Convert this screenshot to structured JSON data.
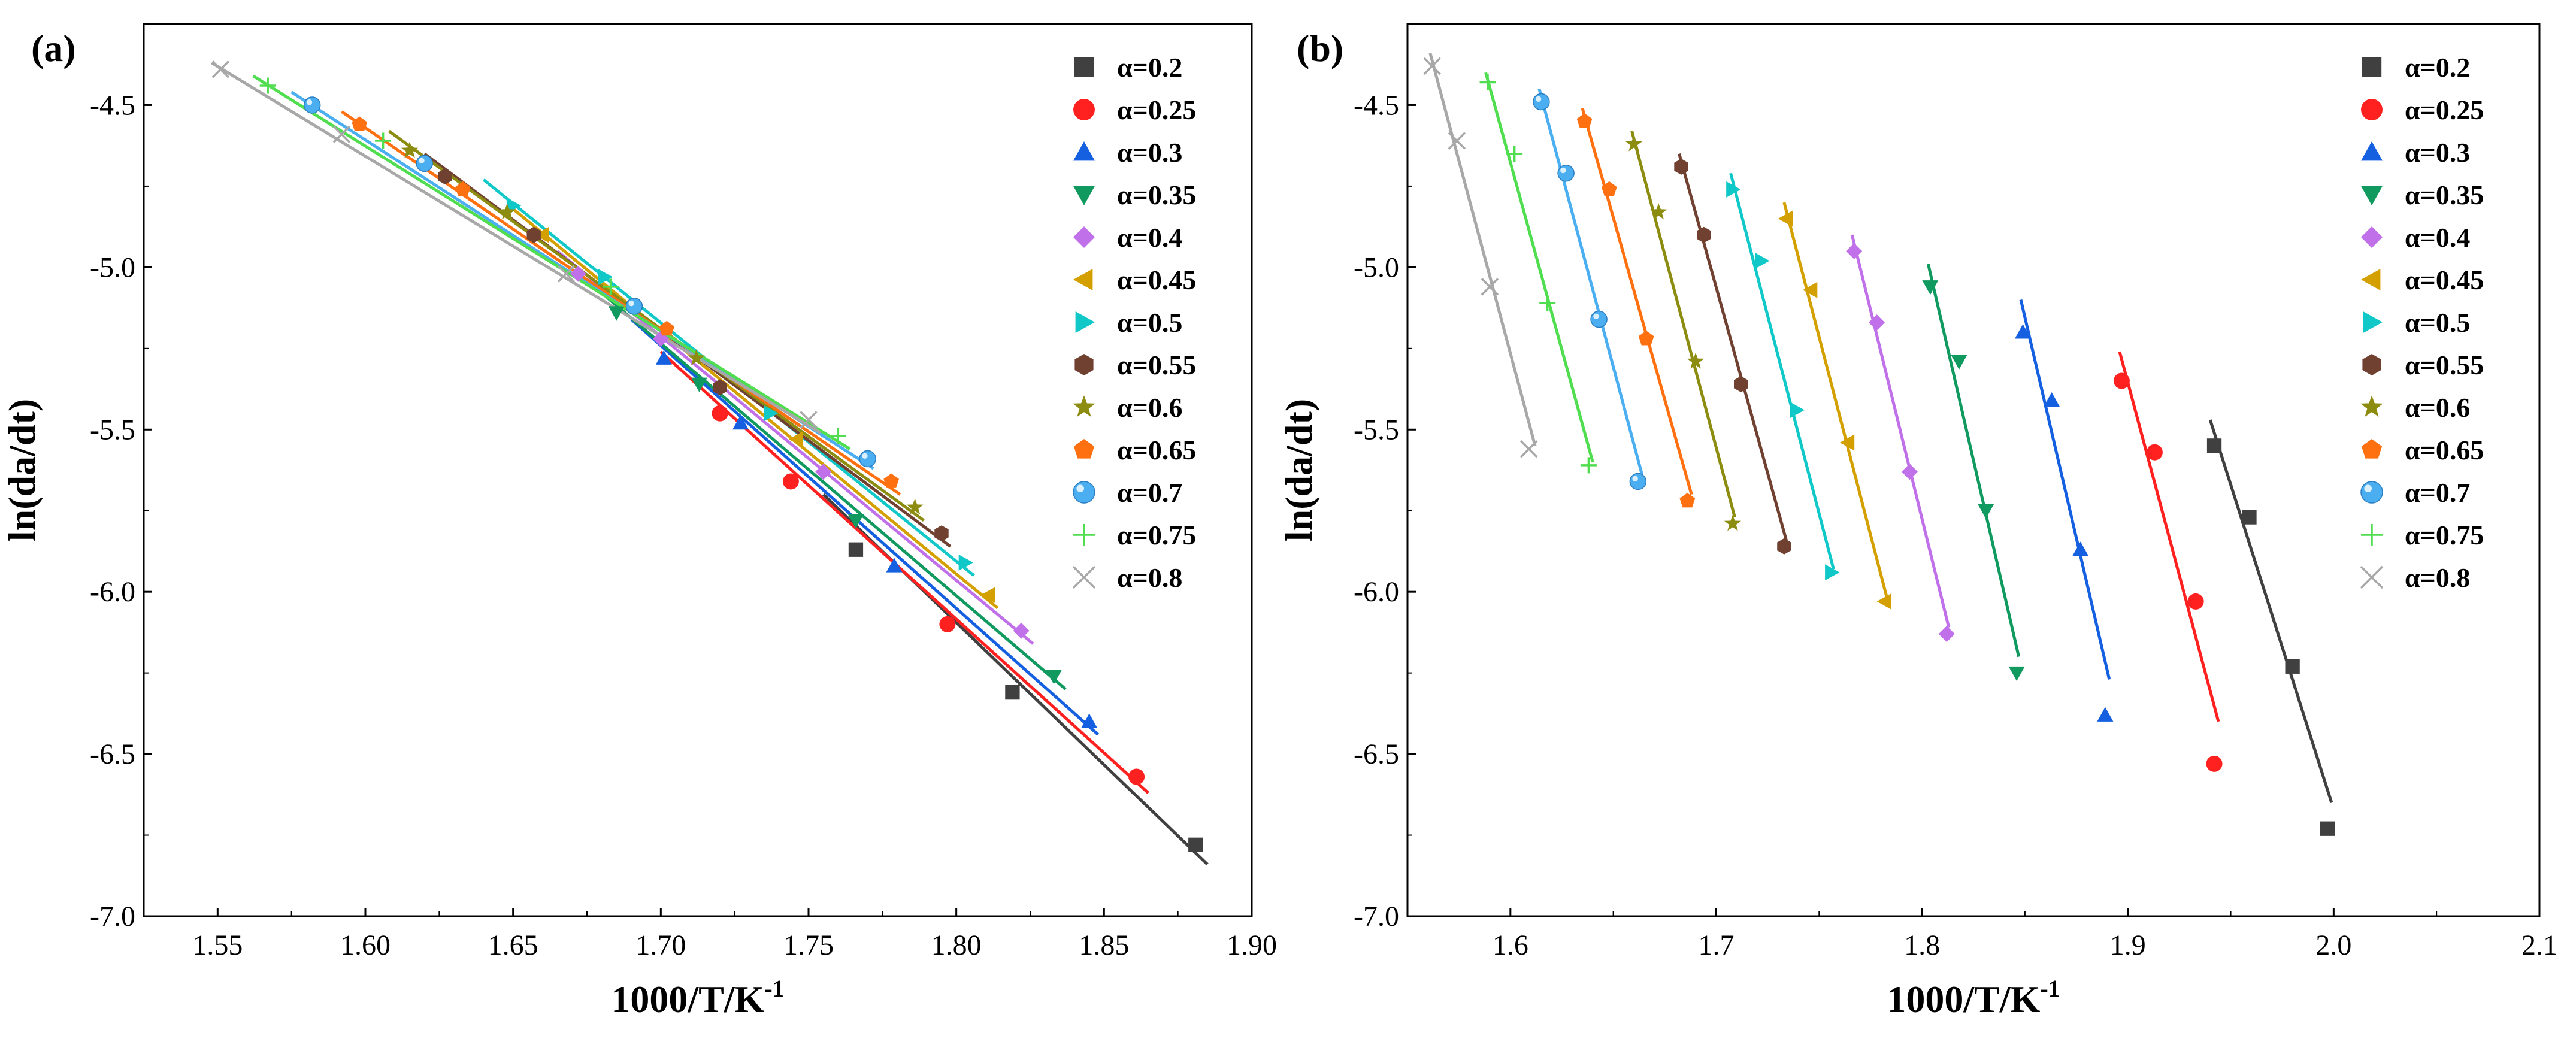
{
  "panels": [
    {
      "chart_data": {
        "type": "scatter",
        "panel_label": "(a)",
        "xlabel": "1000/T/K",
        "xlabel_sup": "-1",
        "ylabel": "ln(da/dt)",
        "xlim": [
          1.525,
          1.9
        ],
        "ylim": [
          -7.0,
          -4.25
        ],
        "xticks": [
          1.55,
          1.6,
          1.65,
          1.7,
          1.75,
          1.8,
          1.85,
          1.9
        ],
        "xtick_labels": [
          "1.55",
          "1.60",
          "1.65",
          "1.70",
          "1.75",
          "1.80",
          "1.85",
          "1.90"
        ],
        "yticks": [
          -7.0,
          -6.5,
          -6.0,
          -5.5,
          -5.0,
          -4.5
        ],
        "ytick_labels": [
          "-7.0",
          "-6.5",
          "-6.0",
          "-5.5",
          "-5.0",
          "-4.5"
        ],
        "legend_position": "top-right",
        "series": [
          {
            "name": "α=0.2",
            "color": "#404040",
            "marker": "square",
            "x": [
              1.766,
              1.819,
              1.881
            ],
            "y": [
              -5.87,
              -6.31,
              -6.78
            ],
            "fit": [
              [
                1.755,
                -5.7
              ],
              [
                1.885,
                -6.84
              ]
            ]
          },
          {
            "name": "α=0.25",
            "color": "#ff2020",
            "marker": "circle",
            "x": [
              1.72,
              1.744,
              1.797,
              1.861
            ],
            "y": [
              -5.45,
              -5.66,
              -6.1,
              -6.57
            ],
            "fit": [
              [
                1.7,
                -5.26
              ],
              [
                1.865,
                -6.62
              ]
            ]
          },
          {
            "name": "α=0.3",
            "color": "#1560e0",
            "marker": "triangle-up",
            "x": [
              1.701,
              1.727,
              1.779,
              1.845
            ],
            "y": [
              -5.28,
              -5.48,
              -5.92,
              -6.4
            ],
            "fit": [
              [
                1.69,
                -5.16
              ],
              [
                1.848,
                -6.44
              ]
            ]
          },
          {
            "name": "α=0.35",
            "color": "#109a60",
            "marker": "triangle-down",
            "x": [
              1.685,
              1.713,
              1.766,
              1.833
            ],
            "y": [
              -5.14,
              -5.36,
              -5.78,
              -6.26
            ],
            "fit": [
              [
                1.675,
                -5.04
              ],
              [
                1.837,
                -6.3
              ]
            ]
          },
          {
            "name": "α=0.4",
            "color": "#c070e8",
            "marker": "diamond",
            "x": [
              1.672,
              1.7,
              1.755,
              1.822
            ],
            "y": [
              -5.02,
              -5.22,
              -5.63,
              -6.12
            ],
            "fit": [
              [
                1.665,
                -4.95
              ],
              [
                1.826,
                -6.16
              ]
            ]
          },
          {
            "name": "α=0.45",
            "color": "#d4a000",
            "marker": "triangle-left",
            "x": [
              1.66,
              1.69,
              1.746,
              1.811
            ],
            "y": [
              -4.9,
              -5.12,
              -5.53,
              -6.01
            ],
            "fit": [
              [
                1.65,
                -4.82
              ],
              [
                1.814,
                -6.05
              ]
            ]
          },
          {
            "name": "α=0.5",
            "color": "#10c8c8",
            "marker": "triangle-right",
            "x": [
              1.65,
              1.681,
              1.737,
              1.803
            ],
            "y": [
              -4.81,
              -5.03,
              -5.45,
              -5.91
            ],
            "fit": [
              [
                1.64,
                -4.73
              ],
              [
                1.806,
                -5.95
              ]
            ]
          },
          {
            "name": "α=0.55",
            "color": "#704030",
            "marker": "hexagon",
            "x": [
              1.627,
              1.657,
              1.72,
              1.795
            ],
            "y": [
              -4.72,
              -4.9,
              -5.37,
              -5.82
            ],
            "fit": [
              [
                1.62,
                -4.65
              ],
              [
                1.798,
                -5.86
              ]
            ]
          },
          {
            "name": "α=0.6",
            "color": "#8c8c10",
            "marker": "star",
            "x": [
              1.615,
              1.648,
              1.712,
              1.786
            ],
            "y": [
              -4.64,
              -4.83,
              -5.28,
              -5.74
            ],
            "fit": [
              [
                1.608,
                -4.58
              ],
              [
                1.789,
                -5.78
              ]
            ]
          },
          {
            "name": "α=0.65",
            "color": "#ff7010",
            "marker": "pentagon",
            "x": [
              1.598,
              1.633,
              1.702,
              1.778
            ],
            "y": [
              -4.56,
              -4.76,
              -5.19,
              -5.66
            ],
            "fit": [
              [
                1.592,
                -4.52
              ],
              [
                1.781,
                -5.7
              ]
            ]
          },
          {
            "name": "α=0.7",
            "color": "#4aaef0",
            "marker": "sphere",
            "x": [
              1.582,
              1.62,
              1.691,
              1.77
            ],
            "y": [
              -4.5,
              -4.68,
              -5.12,
              -5.59
            ],
            "fit": [
              [
                1.575,
                -4.46
              ],
              [
                1.772,
                -5.62
              ]
            ]
          },
          {
            "name": "α=0.75",
            "color": "#50dd50",
            "marker": "plus",
            "x": [
              1.567,
              1.606,
              1.683,
              1.76
            ],
            "y": [
              -4.44,
              -4.61,
              -5.06,
              -5.52
            ],
            "fit": [
              [
                1.562,
                -4.41
              ],
              [
                1.764,
                -5.56
              ]
            ]
          },
          {
            "name": "α=0.8",
            "color": "#a8a8a8",
            "marker": "x",
            "x": [
              1.551,
              1.592,
              1.668,
              1.75
            ],
            "y": [
              -4.39,
              -4.59,
              -5.02,
              -5.47
            ],
            "fit": [
              [
                1.548,
                -4.37
              ],
              [
                1.754,
                -5.51
              ]
            ]
          }
        ]
      }
    },
    {
      "chart_data": {
        "type": "scatter",
        "panel_label": "(b)",
        "xlabel": "1000/T/K",
        "xlabel_sup": "-1",
        "ylabel": "ln(da/dt)",
        "xlim": [
          1.55,
          2.1
        ],
        "ylim": [
          -7.0,
          -4.25
        ],
        "xticks": [
          1.6,
          1.7,
          1.8,
          1.9,
          2.0,
          2.1
        ],
        "xtick_labels": [
          "1.6",
          "1.7",
          "1.8",
          "1.9",
          "2.0",
          "2.1"
        ],
        "yticks": [
          -7.0,
          -6.5,
          -6.0,
          -5.5,
          -5.0,
          -4.5
        ],
        "ytick_labels": [
          "-7.0",
          "-6.5",
          "-6.0",
          "-5.5",
          "-5.0",
          "-4.5"
        ],
        "legend_position": "top-right",
        "series": [
          {
            "name": "α=0.2",
            "color": "#404040",
            "marker": "square",
            "x": [
              1.942,
              1.959,
              1.98,
              1.997
            ],
            "y": [
              -5.55,
              -5.77,
              -6.23,
              -6.73
            ],
            "fit": [
              [
                1.94,
                -5.47
              ],
              [
                1.999,
                -6.65
              ]
            ]
          },
          {
            "name": "α=0.25",
            "color": "#ff2020",
            "marker": "circle",
            "x": [
              1.897,
              1.913,
              1.933,
              1.942
            ],
            "y": [
              -5.35,
              -5.57,
              -6.03,
              -6.53
            ],
            "fit": [
              [
                1.896,
                -5.26
              ],
              [
                1.944,
                -6.4
              ]
            ]
          },
          {
            "name": "α=0.3",
            "color": "#1560e0",
            "marker": "triangle-up",
            "x": [
              1.849,
              1.863,
              1.877,
              1.889
            ],
            "y": [
              -5.2,
              -5.41,
              -5.87,
              -6.38
            ],
            "fit": [
              [
                1.848,
                -5.1
              ],
              [
                1.891,
                -6.27
              ]
            ]
          },
          {
            "name": "α=0.35",
            "color": "#109a60",
            "marker": "triangle-down",
            "x": [
              1.804,
              1.818,
              1.831,
              1.846
            ],
            "y": [
              -5.06,
              -5.29,
              -5.75,
              -6.25
            ],
            "fit": [
              [
                1.803,
                -4.99
              ],
              [
                1.847,
                -6.2
              ]
            ]
          },
          {
            "name": "α=0.4",
            "color": "#c070e8",
            "marker": "diamond",
            "x": [
              1.767,
              1.778,
              1.794,
              1.812
            ],
            "y": [
              -4.95,
              -5.17,
              -5.63,
              -6.13
            ],
            "fit": [
              [
                1.766,
                -4.9
              ],
              [
                1.813,
                -6.11
              ]
            ]
          },
          {
            "name": "α=0.45",
            "color": "#d4a000",
            "marker": "triangle-left",
            "x": [
              1.734,
              1.746,
              1.764,
              1.782
            ],
            "y": [
              -4.85,
              -5.07,
              -5.54,
              -6.03
            ],
            "fit": [
              [
                1.733,
                -4.8
              ],
              [
                1.783,
                -6.02
              ]
            ]
          },
          {
            "name": "α=0.5",
            "color": "#10c8c8",
            "marker": "triangle-right",
            "x": [
              1.708,
              1.722,
              1.739,
              1.756
            ],
            "y": [
              -4.76,
              -4.98,
              -5.44,
              -5.94
            ],
            "fit": [
              [
                1.707,
                -4.71
              ],
              [
                1.757,
                -5.93
              ]
            ]
          },
          {
            "name": "α=0.55",
            "color": "#704030",
            "marker": "hexagon",
            "x": [
              1.683,
              1.694,
              1.712,
              1.733
            ],
            "y": [
              -4.69,
              -4.9,
              -5.36,
              -5.86
            ],
            "fit": [
              [
                1.682,
                -4.65
              ],
              [
                1.734,
                -5.84
              ]
            ]
          },
          {
            "name": "α=0.6",
            "color": "#8c8c10",
            "marker": "star",
            "x": [
              1.66,
              1.672,
              1.69,
              1.708
            ],
            "y": [
              -4.62,
              -4.83,
              -5.29,
              -5.79
            ],
            "fit": [
              [
                1.659,
                -4.58
              ],
              [
                1.709,
                -5.77
              ]
            ]
          },
          {
            "name": "α=0.65",
            "color": "#ff7010",
            "marker": "pentagon",
            "x": [
              1.636,
              1.648,
              1.666,
              1.686
            ],
            "y": [
              -4.55,
              -4.76,
              -5.22,
              -5.72
            ],
            "fit": [
              [
                1.635,
                -4.51
              ],
              [
                1.688,
                -5.7
              ]
            ]
          },
          {
            "name": "α=0.7",
            "color": "#4aaef0",
            "marker": "sphere",
            "x": [
              1.615,
              1.627,
              1.643,
              1.662
            ],
            "y": [
              -4.49,
              -4.71,
              -5.16,
              -5.66
            ],
            "fit": [
              [
                1.614,
                -4.45
              ],
              [
                1.664,
                -5.64
              ]
            ]
          },
          {
            "name": "α=0.75",
            "color": "#50dd50",
            "marker": "plus",
            "x": [
              1.589,
              1.602,
              1.618,
              1.638
            ],
            "y": [
              -4.43,
              -4.65,
              -5.11,
              -5.61
            ],
            "fit": [
              [
                1.588,
                -4.4
              ],
              [
                1.64,
                -5.6
              ]
            ]
          },
          {
            "name": "α=0.8",
            "color": "#a8a8a8",
            "marker": "x",
            "x": [
              1.562,
              1.574,
              1.59,
              1.609
            ],
            "y": [
              -4.38,
              -4.61,
              -5.06,
              -5.56
            ],
            "fit": [
              [
                1.561,
                -4.34
              ],
              [
                1.612,
                -5.55
              ]
            ]
          }
        ]
      }
    }
  ]
}
